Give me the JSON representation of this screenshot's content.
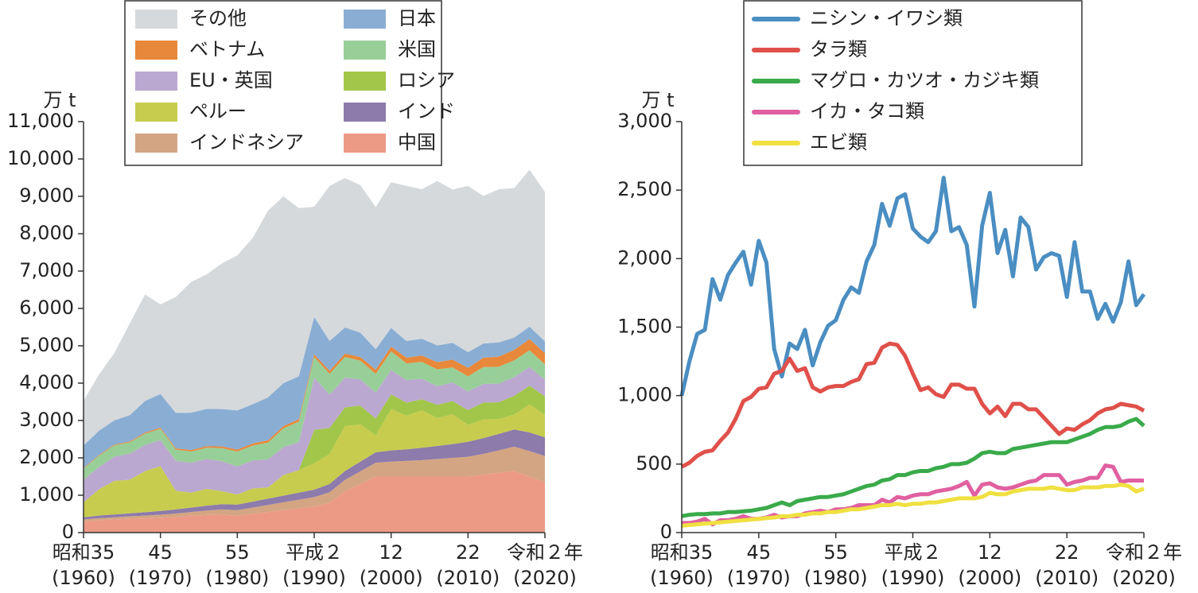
{
  "chart_data": [
    {
      "type": "stacked-area",
      "ylabel": "万 t",
      "x": [
        1960,
        1962,
        1964,
        1966,
        1968,
        1970,
        1972,
        1974,
        1976,
        1978,
        1980,
        1982,
        1984,
        1986,
        1988,
        1990,
        1992,
        1994,
        1996,
        1998,
        2000,
        2002,
        2004,
        2006,
        2008,
        2010,
        2012,
        2014,
        2016,
        2018,
        2020
      ],
      "xlim": [
        1960,
        2020
      ],
      "xticks": [
        {
          "value": 1960,
          "label": "昭和35",
          "sublabel": "(1960)"
        },
        {
          "value": 1970,
          "label": "45",
          "sublabel": "(1970)"
        },
        {
          "value": 1980,
          "label": "55",
          "sublabel": "(1980)"
        },
        {
          "value": 1990,
          "label": "平成２",
          "sublabel": "(1990)"
        },
        {
          "value": 2000,
          "label": "12",
          "sublabel": "(2000)"
        },
        {
          "value": 2010,
          "label": "22",
          "sublabel": "(2010)"
        },
        {
          "value": 2020,
          "label": "令和２年",
          "sublabel": "(2020)"
        }
      ],
      "ylim": [
        0,
        11000
      ],
      "yticks": [
        0,
        {
          "value": 1000,
          "label": "1,000"
        },
        {
          "value": 2000,
          "label": "2,000"
        },
        {
          "value": 3000,
          "label": "3,000"
        },
        {
          "value": 4000,
          "label": "4,000"
        },
        {
          "value": 5000,
          "label": "5,000"
        },
        {
          "value": 6000,
          "label": "6,000"
        },
        {
          "value": 7000,
          "label": "7,000"
        },
        {
          "value": 8000,
          "label": "8,000"
        },
        {
          "value": 9000,
          "label": "9,000"
        },
        {
          "value": 10000,
          "label": "10,000"
        },
        {
          "value": 11000,
          "label": "11,000"
        }
      ],
      "series": [
        {
          "name": "中国",
          "color": "#ec9a86",
          "values": [
            300,
            330,
            350,
            370,
            380,
            400,
            420,
            450,
            470,
            480,
            450,
            500,
            550,
            600,
            650,
            700,
            800,
            1100,
            1300,
            1500,
            1500,
            1500,
            1500,
            1500,
            1500,
            1500,
            1550,
            1600,
            1650,
            1500,
            1350
          ]
        },
        {
          "name": "インドネシア",
          "color": "#d4a582",
          "values": [
            50,
            55,
            60,
            65,
            75,
            80,
            90,
            100,
            120,
            140,
            150,
            170,
            190,
            210,
            230,
            250,
            280,
            310,
            340,
            370,
            400,
            420,
            440,
            470,
            500,
            530,
            560,
            600,
            650,
            680,
            700
          ]
        },
        {
          "name": "インド",
          "color": "#8c7bab",
          "values": [
            60,
            70,
            75,
            80,
            90,
            100,
            110,
            120,
            130,
            140,
            150,
            160,
            170,
            180,
            190,
            200,
            220,
            240,
            260,
            280,
            300,
            310,
            330,
            350,
            370,
            400,
            420,
            440,
            460,
            500,
            500
          ]
        },
        {
          "name": "ペルー",
          "color": "#c8cc4e",
          "values": [
            400,
            700,
            900,
            900,
            1100,
            1200,
            500,
            400,
            450,
            350,
            270,
            350,
            300,
            550,
            600,
            700,
            800,
            1200,
            1000,
            450,
            1100,
            900,
            1000,
            750,
            800,
            450,
            500,
            400,
            400,
            750,
            600
          ]
        },
        {
          "name": "ロシア",
          "color": "#a2c64a",
          "values": [
            0,
            0,
            0,
            0,
            0,
            0,
            0,
            0,
            0,
            0,
            0,
            0,
            0,
            0,
            0,
            900,
            700,
            500,
            500,
            450,
            400,
            350,
            300,
            350,
            350,
            400,
            450,
            450,
            500,
            500,
            500
          ]
        },
        {
          "name": "EU・英国",
          "color": "#bba8d0",
          "values": [
            600,
            600,
            650,
            700,
            700,
            700,
            800,
            800,
            800,
            800,
            750,
            750,
            750,
            750,
            750,
            1400,
            900,
            800,
            700,
            700,
            650,
            600,
            550,
            500,
            500,
            500,
            500,
            500,
            500,
            500,
            450
          ]
        },
        {
          "name": "米国",
          "color": "#98cf98",
          "values": [
            300,
            300,
            300,
            300,
            300,
            300,
            300,
            300,
            300,
            350,
            400,
            400,
            450,
            500,
            550,
            550,
            550,
            550,
            500,
            500,
            500,
            450,
            450,
            450,
            400,
            400,
            450,
            450,
            450,
            450,
            400
          ]
        },
        {
          "name": "ベトナム",
          "color": "#e8883a",
          "values": [
            20,
            20,
            20,
            25,
            30,
            30,
            35,
            40,
            40,
            45,
            50,
            55,
            60,
            60,
            65,
            70,
            80,
            90,
            100,
            110,
            130,
            150,
            170,
            190,
            210,
            230,
            250,
            270,
            280,
            300,
            300
          ]
        },
        {
          "name": "日本",
          "color": "#8aaed3",
          "values": [
            600,
            650,
            650,
            700,
            850,
            900,
            950,
            1000,
            1000,
            1000,
            1050,
            1050,
            1150,
            1150,
            1150,
            1000,
            800,
            700,
            650,
            550,
            500,
            450,
            450,
            450,
            450,
            420,
            380,
            380,
            330,
            330,
            320
          ]
        },
        {
          "name": "その他",
          "color": "#d5d9dc",
          "values": [
            1200,
            1500,
            1800,
            2450,
            2850,
            2400,
            3100,
            3500,
            3600,
            3900,
            4150,
            4450,
            5000,
            5000,
            4500,
            2950,
            4150,
            4000,
            3950,
            3800,
            3900,
            4150,
            4000,
            4400,
            4100,
            4450,
            3950,
            4100,
            4000,
            4200,
            4000
          ]
        }
      ]
    },
    {
      "type": "line",
      "ylabel": "万 t",
      "x": [
        1960,
        1961,
        1962,
        1963,
        1964,
        1965,
        1966,
        1967,
        1968,
        1969,
        1970,
        1971,
        1972,
        1973,
        1974,
        1975,
        1976,
        1977,
        1978,
        1979,
        1980,
        1981,
        1982,
        1983,
        1984,
        1985,
        1986,
        1987,
        1988,
        1989,
        1990,
        1991,
        1992,
        1993,
        1994,
        1995,
        1996,
        1997,
        1998,
        1999,
        2000,
        2001,
        2002,
        2003,
        2004,
        2005,
        2006,
        2007,
        2008,
        2009,
        2010,
        2011,
        2012,
        2013,
        2014,
        2015,
        2016,
        2017,
        2018,
        2019,
        2020
      ],
      "xlim": [
        1960,
        2020
      ],
      "xticks": [
        {
          "value": 1960,
          "label": "昭和35",
          "sublabel": "(1960)"
        },
        {
          "value": 1970,
          "label": "45",
          "sublabel": "(1970)"
        },
        {
          "value": 1980,
          "label": "55",
          "sublabel": "(1980)"
        },
        {
          "value": 1990,
          "label": "平成２",
          "sublabel": "(1990)"
        },
        {
          "value": 2000,
          "label": "12",
          "sublabel": "(2000)"
        },
        {
          "value": 2010,
          "label": "22",
          "sublabel": "(2010)"
        },
        {
          "value": 2020,
          "label": "令和２年",
          "sublabel": "(2020)"
        }
      ],
      "ylim": [
        0,
        3000
      ],
      "yticks": [
        0,
        500,
        {
          "value": 1000,
          "label": "1,000"
        },
        {
          "value": 1500,
          "label": "1,500"
        },
        {
          "value": 2000,
          "label": "2,000"
        },
        {
          "value": 2500,
          "label": "2,500"
        },
        {
          "value": 3000,
          "label": "3,000"
        }
      ],
      "series": [
        {
          "name": "ニシン・イワシ類",
          "color": "#4a8ec2",
          "values": [
            1000,
            1250,
            1450,
            1480,
            1850,
            1700,
            1880,
            1970,
            2050,
            1810,
            2130,
            1970,
            1340,
            1140,
            1380,
            1340,
            1480,
            1220,
            1390,
            1510,
            1550,
            1700,
            1790,
            1750,
            1980,
            2100,
            2400,
            2240,
            2440,
            2470,
            2220,
            2160,
            2120,
            2200,
            2590,
            2200,
            2230,
            2100,
            1650,
            2240,
            2480,
            2040,
            2210,
            1870,
            2300,
            2230,
            1920,
            2010,
            2040,
            2020,
            1720,
            2120,
            1760,
            1760,
            1560,
            1670,
            1540,
            1680,
            1980,
            1660,
            1740
          ]
        },
        {
          "name": "タラ類",
          "color": "#e0504a",
          "values": [
            480,
            510,
            560,
            590,
            600,
            670,
            730,
            830,
            960,
            990,
            1050,
            1060,
            1160,
            1180,
            1270,
            1180,
            1200,
            1060,
            1030,
            1060,
            1070,
            1070,
            1100,
            1120,
            1230,
            1240,
            1350,
            1380,
            1370,
            1290,
            1160,
            1040,
            1060,
            1010,
            990,
            1080,
            1080,
            1050,
            1050,
            940,
            870,
            920,
            850,
            940,
            940,
            900,
            900,
            840,
            780,
            720,
            760,
            750,
            790,
            820,
            870,
            900,
            910,
            940,
            930,
            920,
            890
          ]
        },
        {
          "name": "マグロ・カツオ・カジキ類",
          "color": "#3aaa4a",
          "values": [
            120,
            130,
            135,
            135,
            140,
            140,
            150,
            150,
            155,
            160,
            170,
            180,
            200,
            220,
            200,
            230,
            240,
            250,
            260,
            260,
            270,
            280,
            300,
            320,
            340,
            350,
            380,
            390,
            420,
            420,
            440,
            450,
            450,
            470,
            480,
            500,
            500,
            510,
            540,
            580,
            590,
            580,
            580,
            610,
            620,
            630,
            640,
            650,
            660,
            660,
            660,
            680,
            700,
            720,
            750,
            770,
            770,
            780,
            810,
            830,
            780
          ]
        },
        {
          "name": "イカ・タコ類",
          "color": "#e060a0",
          "values": [
            70,
            70,
            80,
            100,
            60,
            90,
            90,
            100,
            120,
            100,
            100,
            110,
            130,
            110,
            120,
            120,
            140,
            150,
            160,
            150,
            170,
            170,
            180,
            200,
            200,
            200,
            240,
            220,
            260,
            250,
            270,
            280,
            280,
            300,
            310,
            320,
            340,
            370,
            270,
            350,
            360,
            330,
            320,
            330,
            350,
            370,
            380,
            420,
            420,
            420,
            350,
            370,
            380,
            400,
            400,
            490,
            480,
            370,
            380,
            380,
            380
          ]
        },
        {
          "name": "エビ類",
          "color": "#f0e040",
          "values": [
            50,
            55,
            60,
            65,
            70,
            75,
            80,
            85,
            90,
            95,
            100,
            105,
            110,
            120,
            120,
            130,
            130,
            140,
            140,
            150,
            150,
            160,
            170,
            170,
            180,
            190,
            200,
            200,
            210,
            200,
            210,
            210,
            220,
            220,
            230,
            240,
            250,
            250,
            250,
            260,
            290,
            280,
            280,
            300,
            310,
            320,
            320,
            320,
            330,
            320,
            310,
            310,
            330,
            330,
            330,
            340,
            340,
            350,
            340,
            300,
            320
          ]
        }
      ]
    }
  ]
}
